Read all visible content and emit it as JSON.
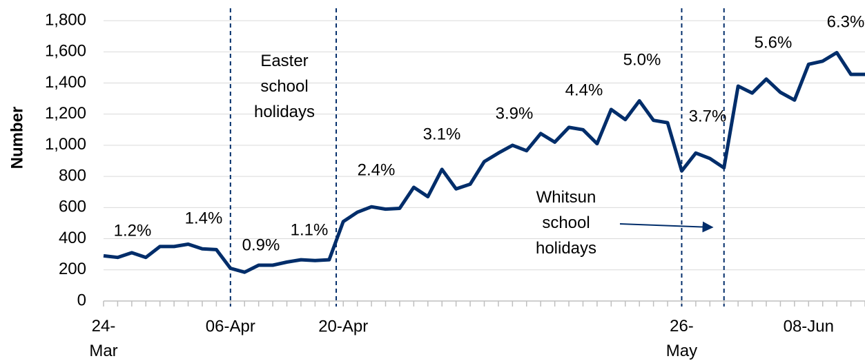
{
  "chart_data": {
    "type": "line",
    "y_label": "Number",
    "categories": [
      "24-Mar",
      null,
      null,
      null,
      null,
      null,
      null,
      null,
      null,
      "06-Apr",
      null,
      null,
      null,
      null,
      null,
      null,
      null,
      "20-Apr",
      null,
      null,
      null,
      null,
      null,
      null,
      null,
      null,
      null,
      null,
      null,
      null,
      null,
      null,
      null,
      null,
      null,
      null,
      null,
      null,
      null,
      null,
      null,
      "26-May",
      null,
      null,
      null,
      null,
      null,
      null,
      null,
      null,
      "08-Jun",
      null,
      null,
      null,
      null
    ],
    "series": [
      {
        "name": "Number",
        "color": "#002d6a",
        "values": [
          290,
          280,
          310,
          280,
          350,
          350,
          365,
          335,
          330,
          210,
          185,
          230,
          230,
          250,
          265,
          260,
          265,
          510,
          570,
          605,
          590,
          595,
          730,
          670,
          845,
          720,
          750,
          895,
          950,
          1000,
          965,
          1075,
          1020,
          1115,
          1100,
          1010,
          1230,
          1165,
          1285,
          1160,
          1145,
          835,
          950,
          915,
          855,
          1380,
          1335,
          1425,
          1340,
          1290,
          1520,
          1540,
          1595,
          1455,
          1455
        ]
      }
    ],
    "ylim": [
      0,
      1800
    ],
    "yticks": [
      0,
      200,
      400,
      600,
      800,
      {
        "value": 1000,
        "label": "1,000"
      },
      {
        "value": 1200,
        "label": "1,200"
      },
      {
        "value": 1400,
        "label": "1,400"
      },
      {
        "value": 1600,
        "label": "1,600"
      },
      {
        "value": 1800,
        "label": "1,800"
      }
    ],
    "grid": true,
    "annotations": [
      "1.2%",
      "1.4%",
      "0.9%",
      "1.1%",
      "2.4%",
      "3.1%",
      "3.9%",
      "4.4%",
      "5.0%",
      "3.7%",
      "5.6%",
      "6.3%"
    ],
    "periods": [
      "Easter school holidays",
      "Whitsun school holidays"
    ]
  }
}
